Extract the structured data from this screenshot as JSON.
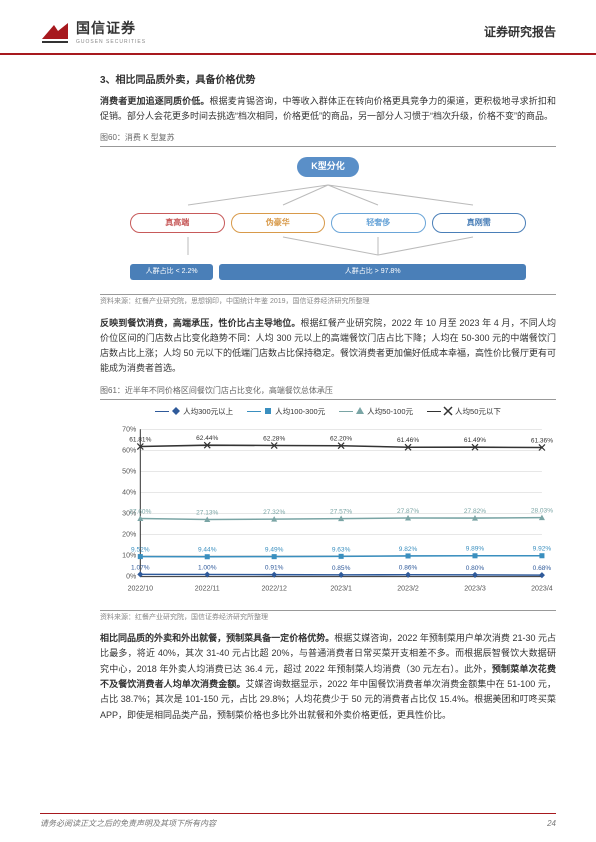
{
  "header": {
    "company_cn": "国信证券",
    "company_en": "GUOSEN SECURITIES",
    "report_type": "证券研究报告"
  },
  "section": {
    "title": "3、相比同品质外卖，具备价格优势",
    "para1_bold": "消费者更加追逐同质价低。",
    "para1": "根据麦肯锡咨询，中等收入群体正在转向价格更具竞争力的渠道，更积极地寻求折扣和促销。部分人会花更多时间去挑选“档次相同，价格更低”的商品，另一部分人习惯于“档次升级，价格不变”的商品。",
    "fig60_title": "图60：消费 K 型复苏",
    "fig60_source": "资料来源：红餐产业研究院，思想钢印，中国统计年鉴 2019，国信证券经济研究所整理",
    "para2_bold": "反映到餐饮消费，高端承压，性价比占主导地位。",
    "para2": "根据红餐产业研究院，2022 年 10 月至 2023 年 4 月，不同人均价位区间的门店数占比变化趋势不同：人均 300 元以上的高端餐饮门店占比下降；人均在 50-300 元的中端餐饮门店数占比上涨；人均 50 元以下的低端门店数占比保持稳定。餐饮消费者更加偏好低成本幸福，高性价比餐厅更有可能成为消费者首选。",
    "fig61_title": "图61：近半年不同价格区间餐饮门店占比变化，高端餐饮总体承压",
    "fig61_source": "资料来源：红餐产业研究院，国信证券经济研究所整理",
    "para3_bold": "相比同品质的外卖和外出就餐，预制菜具备一定价格优势。",
    "para3a": "根据艾媒咨询，2022 年预制菜用户单次消费 21-30 元占比最多，将近 40%，其次 31-40 元占比超 20%，与普通消费者日常买菜开支相差不多。而根据辰智餐饮大数据研究中心，2018 年外卖人均消费已达 36.4 元，超过 2022 年预制菜人均消费（30 元左右）。此外，",
    "para3_bold2": "预制菜单次花费不及餐饮消费者人均单次消费金额。",
    "para3b": "艾媒咨询数据显示，2022 年中国餐饮消费者单次消费金额集中在 51-100 元，占比 38.7%；其次是 101-150 元，占比 29.8%；人均花费少于 50 元的消费者占比仅 15.4%。根据美团和叮咚买菜 APP，即使是相同品类产品，预制菜价格也多比外出就餐和外卖价格更低，更具性价比。"
  },
  "k_diagram": {
    "top": "K型分化",
    "nodes": [
      "真高端",
      "伪豪华",
      "轻奢侈",
      "真刚需"
    ],
    "share_left_label": "人群占比",
    "share_left_val": "< 2.2%",
    "share_right_label": "人群占比",
    "share_right_val": "> 97.8%",
    "colors": [
      "#c75a5a",
      "#d89a4a",
      "#6aa5d8",
      "#4a7fb8"
    ]
  },
  "chart61": {
    "type": "line",
    "categories": [
      "2022/10",
      "2022/11",
      "2022/12",
      "2023/1",
      "2023/2",
      "2023/3",
      "2023/4"
    ],
    "series": [
      {
        "name": "人均300元以上",
        "color": "#2f5a9a",
        "marker": "diamond",
        "values": [
          1.07,
          1.0,
          0.91,
          0.85,
          0.86,
          0.8,
          0.68
        ]
      },
      {
        "name": "人均100-300元",
        "color": "#3a8fbf",
        "marker": "square",
        "values": [
          9.52,
          9.44,
          9.49,
          9.63,
          9.82,
          9.89,
          9.92
        ]
      },
      {
        "name": "人均50-100元",
        "color": "#7aa5a5",
        "marker": "triangle",
        "values": [
          27.6,
          27.13,
          27.32,
          27.57,
          27.87,
          27.82,
          28.03
        ]
      },
      {
        "name": "人均50元以下",
        "color": "#333333",
        "marker": "cross",
        "values": [
          61.81,
          62.44,
          62.28,
          62.2,
          61.46,
          61.49,
          61.36
        ]
      }
    ],
    "ylim": [
      0,
      70
    ],
    "ytick_step": 10,
    "y_format": "percent",
    "background_color": "#ffffff",
    "grid_color": "#cfcfcf",
    "label_fontsize": 7,
    "line_width": 1.5
  },
  "footer": {
    "disclaimer": "请务必阅读正文之后的免责声明及其项下所有内容",
    "page": "24"
  }
}
